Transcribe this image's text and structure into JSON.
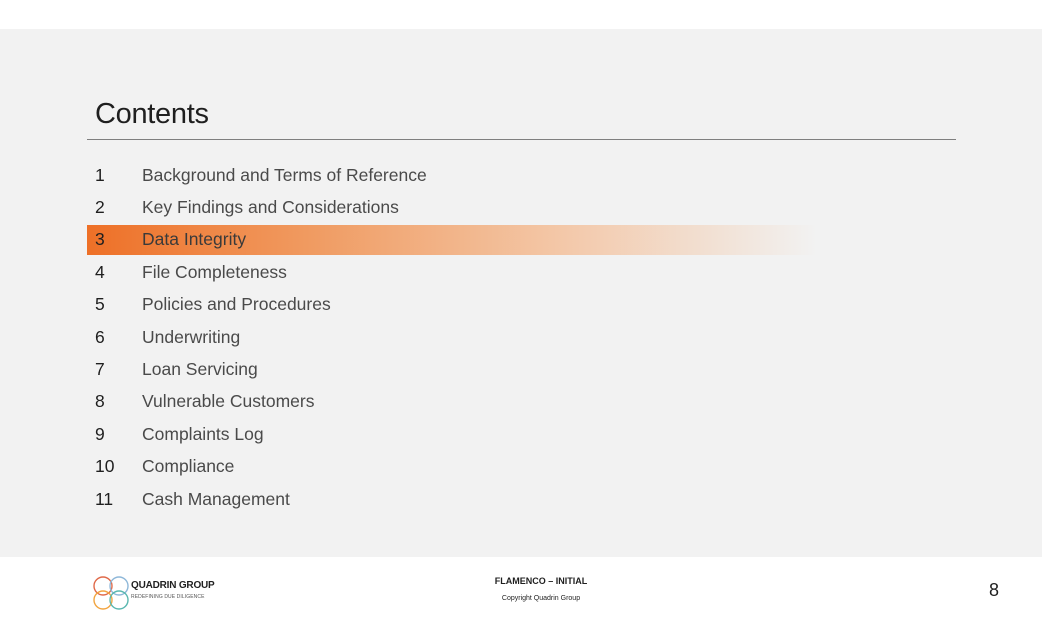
{
  "slide": {
    "title": "Contents",
    "toc": [
      {
        "num": "1",
        "label": "Background and Terms of Reference",
        "active": false
      },
      {
        "num": "2",
        "label": "Key Findings and Considerations",
        "active": false
      },
      {
        "num": "3",
        "label": "Data Integrity",
        "active": true
      },
      {
        "num": "4",
        "label": "File Completeness",
        "active": false
      },
      {
        "num": "5",
        "label": "Policies and Procedures",
        "active": false
      },
      {
        "num": "6",
        "label": "Underwriting",
        "active": false
      },
      {
        "num": "7",
        "label": "Loan Servicing",
        "active": false
      },
      {
        "num": "8",
        "label": "Vulnerable Customers",
        "active": false
      },
      {
        "num": "9",
        "label": "Complaints Log",
        "active": false
      },
      {
        "num": "10",
        "label": "Compliance",
        "active": false
      },
      {
        "num": "11",
        "label": "Cash Management",
        "active": false
      }
    ]
  },
  "footer": {
    "logo_name": "QUADRIN GROUP",
    "logo_tagline": "REDEFINING DUE DILIGENCE",
    "title": "FLAMENCO – INITIAL",
    "copyright": "Copyright Quadrin Group",
    "page_number": "8"
  },
  "colors": {
    "highlight": "#ee7027",
    "logo_circles": [
      "#e06a4a",
      "#8fb8d9",
      "#f2a541",
      "#5bb8b0"
    ]
  }
}
